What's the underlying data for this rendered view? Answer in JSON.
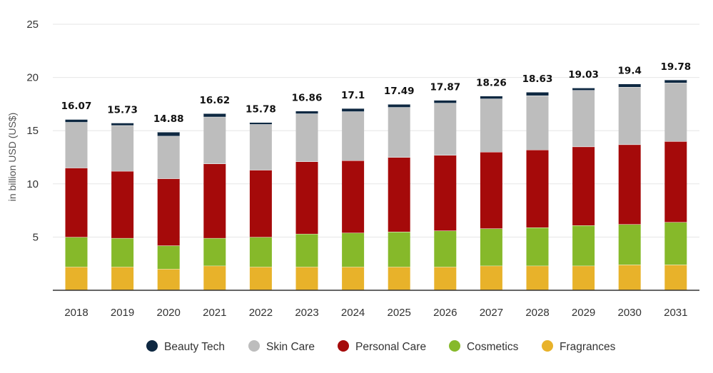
{
  "chart_data": {
    "type": "bar",
    "stacked": true,
    "title": "",
    "xlabel": "",
    "ylabel": "in billion USD (US$)",
    "ylim": [
      0,
      25
    ],
    "yticks": [
      5,
      10,
      15,
      20,
      25
    ],
    "grid": true,
    "legend_position": "bottom",
    "categories": [
      "2018",
      "2019",
      "2020",
      "2021",
      "2022",
      "2023",
      "2024",
      "2025",
      "2026",
      "2027",
      "2028",
      "2029",
      "2030",
      "2031"
    ],
    "totals": [
      16.07,
      15.73,
      14.88,
      16.62,
      15.78,
      16.86,
      17.1,
      17.49,
      17.87,
      18.26,
      18.63,
      19.03,
      19.4,
      19.78
    ],
    "series": [
      {
        "name": "Fragrances",
        "color": "#E8B22A",
        "values": [
          2.2,
          2.2,
          2.0,
          2.3,
          2.2,
          2.2,
          2.2,
          2.2,
          2.2,
          2.3,
          2.3,
          2.3,
          2.4,
          2.4
        ]
      },
      {
        "name": "Cosmetics",
        "color": "#86B92A",
        "values": [
          2.8,
          2.7,
          2.2,
          2.6,
          2.8,
          3.1,
          3.2,
          3.3,
          3.4,
          3.5,
          3.6,
          3.8,
          3.8,
          4.0
        ]
      },
      {
        "name": "Personal Care",
        "color": "#A50A0A",
        "values": [
          6.5,
          6.3,
          6.3,
          7.0,
          6.3,
          6.8,
          6.8,
          7.0,
          7.1,
          7.2,
          7.3,
          7.4,
          7.5,
          7.6
        ]
      },
      {
        "name": "Skin Care",
        "color": "#BDBDBD",
        "values": [
          4.3,
          4.3,
          4.0,
          4.4,
          4.3,
          4.5,
          4.6,
          4.7,
          4.9,
          5.0,
          5.1,
          5.3,
          5.4,
          5.5
        ]
      },
      {
        "name": "Beauty Tech",
        "color": "#0E2841",
        "values": [
          0.27,
          0.23,
          0.38,
          0.32,
          0.18,
          0.26,
          0.3,
          0.29,
          0.27,
          0.26,
          0.33,
          0.23,
          0.3,
          0.28
        ]
      }
    ],
    "legend_order": [
      "Beauty Tech",
      "Skin Care",
      "Personal Care",
      "Cosmetics",
      "Fragrances"
    ],
    "gridline_color": "#E6E6E6",
    "axis_color": "#333333"
  }
}
